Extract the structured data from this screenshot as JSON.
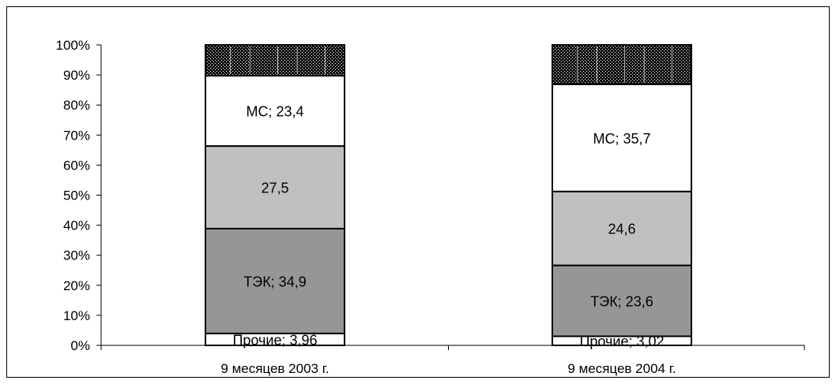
{
  "chart_data": {
    "type": "bar",
    "stacked": true,
    "percent": true,
    "categories": [
      "9 месяцев 2003 г.",
      "9 месяцев 2004 г."
    ],
    "ylim": [
      0,
      100
    ],
    "yticks": [
      "0%",
      "10%",
      "20%",
      "30%",
      "40%",
      "50%",
      "60%",
      "70%",
      "80%",
      "90%",
      "100%"
    ],
    "grid": false,
    "series": [
      {
        "values": [
          3.96,
          3.02
        ],
        "color": "#ffffff",
        "labels": [
          "Прочие; 3,96",
          "Прочие; 3,02"
        ]
      },
      {
        "values": [
          34.9,
          23.6
        ],
        "color": "#969696",
        "labels": [
          "ТЭК; 34,9",
          "ТЭК; 23,6"
        ]
      },
      {
        "values": [
          27.5,
          24.6
        ],
        "color": "#c0c0c0",
        "labels": [
          "27,5",
          "24,6"
        ]
      },
      {
        "values": [
          23.4,
          35.7
        ],
        "color": "#ffffff",
        "labels": [
          "МС; 23,4",
          "МС; 35,7"
        ]
      },
      {
        "values": [
          10.24,
          13.08
        ],
        "color": "#303030",
        "pattern": "dotted",
        "labels": [
          "",
          ""
        ]
      }
    ]
  }
}
